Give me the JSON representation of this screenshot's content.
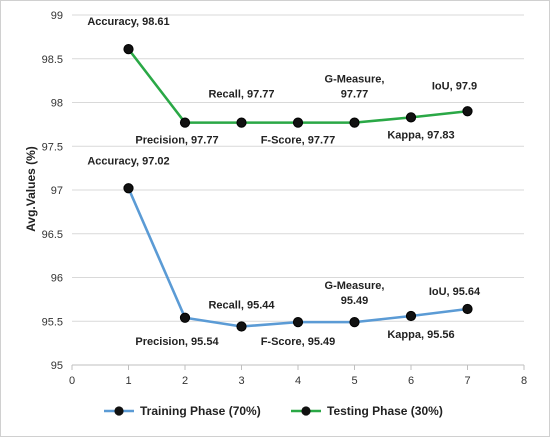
{
  "chart_data": {
    "type": "line",
    "ylabel": "Avg.Values (%)",
    "xlim": [
      0,
      8
    ],
    "ylim": [
      95,
      99
    ],
    "x_ticks": [
      "0",
      "1",
      "2",
      "3",
      "4",
      "5",
      "6",
      "7",
      "8"
    ],
    "y_ticks": [
      "95",
      "95.5",
      "96",
      "96.5",
      "97",
      "97.5",
      "98",
      "98.5",
      "99"
    ],
    "grid": "horizontal",
    "legend_position": "bottom",
    "series": [
      {
        "name": "Training Phase (70%)",
        "color": "#5b9bd5",
        "x": [
          1,
          2,
          3,
          4,
          5,
          6,
          7
        ],
        "values": [
          97.02,
          95.54,
          95.44,
          95.49,
          95.49,
          95.56,
          95.64
        ],
        "labels": [
          [
            "Accuracy, 97.02"
          ],
          [
            "Precision, 95.54"
          ],
          [
            "Recall, 95.44"
          ],
          [
            "F-Score, 95.49"
          ],
          [
            "G-Measure,",
            "95.49"
          ],
          [
            "Kappa, 95.56"
          ],
          [
            "IoU, 95.64"
          ]
        ]
      },
      {
        "name": "Testing Phase (30%)",
        "color": "#2aa846",
        "x": [
          1,
          2,
          3,
          4,
          5,
          6,
          7
        ],
        "values": [
          98.61,
          97.77,
          97.77,
          97.77,
          97.77,
          97.83,
          97.9
        ],
        "labels": [
          [
            "Accuracy, 98.61"
          ],
          [
            "Precision, 97.77"
          ],
          [
            "Recall, 97.77"
          ],
          [
            "F-Score, 97.77"
          ],
          [
            "G-Measure,",
            "97.77"
          ],
          [
            "Kappa, 97.83"
          ],
          [
            "IoU, 97.9"
          ]
        ]
      }
    ]
  }
}
